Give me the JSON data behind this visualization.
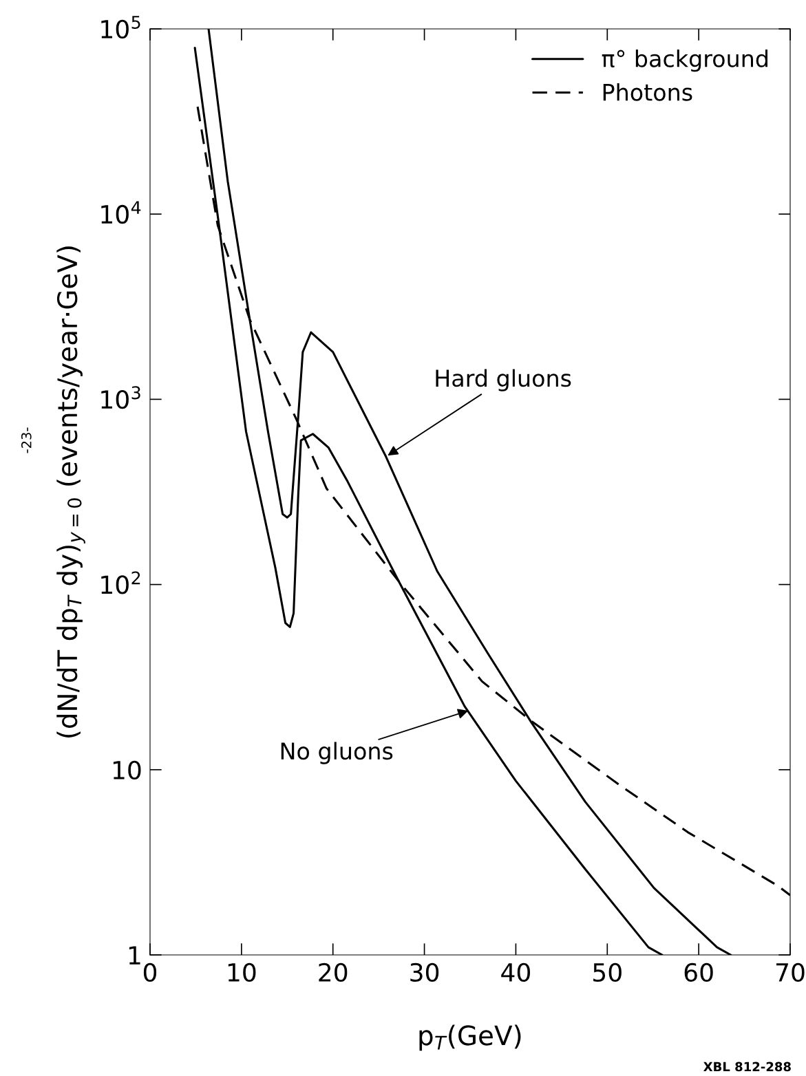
{
  "chart_data": {
    "type": "line",
    "xlabel": "p$_{T}$(GeV)",
    "ylabel": "(dN/dT dp$_{T}$ dy)$_{y=0}$ (events/year·GeV)",
    "log": "y",
    "xlim": [
      0,
      70
    ],
    "ylim": [
      1,
      100000
    ],
    "xticks": [
      0,
      10,
      20,
      30,
      40,
      50,
      60,
      70
    ],
    "yticks": [
      {
        "value": 1,
        "label": "1"
      },
      {
        "value": 10,
        "label": "10"
      },
      {
        "value": 100,
        "label": "10$^{2}$"
      },
      {
        "value": 1000,
        "label": "10$^{3}$"
      },
      {
        "value": 10000,
        "label": "10$^{4}$"
      },
      {
        "value": 100000,
        "label": "10$^{5}$"
      }
    ],
    "grid": false,
    "legend": "top right",
    "marker": "none",
    "series": [
      {
        "name": "π° background",
        "color": "#000000",
        "line_style": "solid",
        "x": [
          4.9,
          7.5,
          10.5,
          13.7,
          14.8,
          15.3,
          15.7,
          16.2,
          16.5,
          17.8,
          19.5,
          21.6,
          27.2,
          34.4,
          40,
          47.6,
          54.5,
          56
        ],
        "values": [
          79000,
          9000,
          670,
          123,
          62,
          59,
          70,
          300,
          600,
          650,
          550,
          360,
          104,
          22,
          8.7,
          2.9,
          1.1,
          1
        ]
      },
      {
        "color": "#000000",
        "line_style": "solid",
        "x": [
          6.4,
          8.5,
          10.9,
          12.9,
          14.5,
          15,
          15.4,
          16.2,
          16.7,
          17.6,
          20,
          25.8,
          31.4,
          37,
          41.7,
          47.6,
          55.1,
          62,
          63.5
        ],
        "values": [
          100000,
          15000,
          2700,
          670,
          240,
          230,
          240,
          800,
          1800,
          2300,
          1800,
          490,
          118,
          42,
          18,
          6.7,
          2.3,
          1.1,
          1
        ]
      },
      {
        "name": "Photons",
        "color": "#000000",
        "line_style": "dashed",
        "x": [
          5.2,
          7.4,
          10.9,
          16,
          19.3,
          27.2,
          36.3,
          41.9,
          51.3,
          58.8,
          68.6,
          70
        ],
        "values": [
          38000,
          8700,
          2700,
          780,
          330,
          104,
          30,
          18,
          8.3,
          4.6,
          2.37,
          2.1
        ]
      }
    ],
    "annotations": [
      {
        "text": "Hard gluons",
        "x": 25.8,
        "y": 490
      },
      {
        "text": "No gluons",
        "x": 35,
        "y": 21
      },
      "-23-",
      "XBL 812-288"
    ]
  }
}
